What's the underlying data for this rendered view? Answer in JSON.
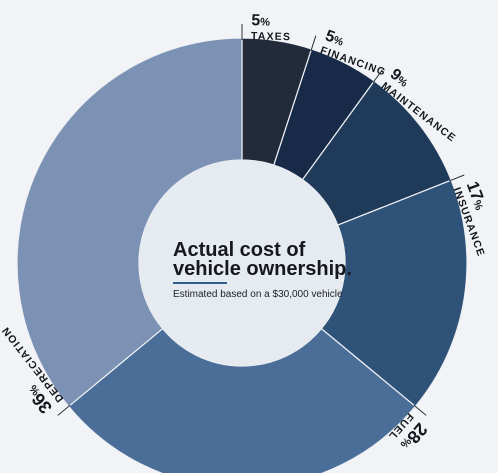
{
  "chart_data": {
    "type": "pie",
    "donut": true,
    "title": [
      "Actual cost of",
      "vehicle ownership."
    ],
    "subtitle": "Estimated based on a $30,000 vehicle",
    "slices": [
      {
        "label": "TAXES",
        "value": 5,
        "display": "5",
        "color": "#232a3a"
      },
      {
        "label": "FINANCING",
        "value": 5,
        "display": "5",
        "color": "#172a47"
      },
      {
        "label": "MAINTENANCE",
        "value": 9,
        "display": "9",
        "color": "#203a5a"
      },
      {
        "label": "INSURANCE",
        "value": 17,
        "display": "17",
        "color": "#2f5278"
      },
      {
        "label": "FUEL",
        "value": 28,
        "display": "28",
        "color": "#4a6e98"
      },
      {
        "label": "DEPRECIATION",
        "value": 36,
        "display": "36",
        "color": "#7b92b4"
      }
    ],
    "percent_symbol": "%",
    "colors": {
      "background": "#f2f3f6",
      "center": "#e6ebf1",
      "accent_rule": "#2d5f8a"
    }
  }
}
